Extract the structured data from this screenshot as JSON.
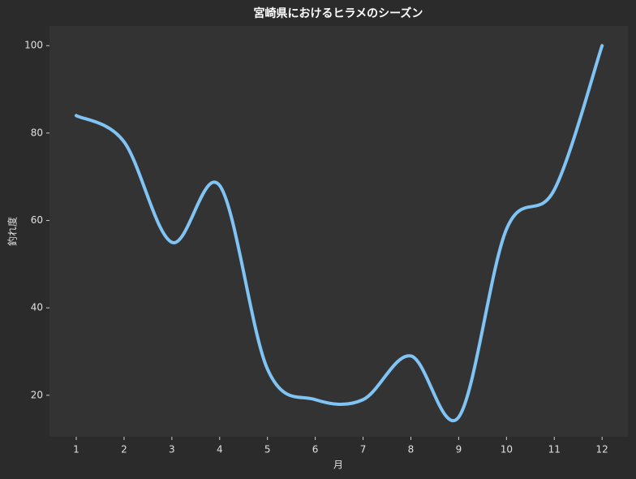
{
  "chart_data": {
    "type": "line",
    "title": "宮崎県におけるヒラメのシーズン",
    "x_label": "月",
    "y_label": "釣れ度",
    "x": [
      1,
      2,
      3,
      4,
      5,
      6,
      7,
      8,
      9,
      10,
      11,
      12
    ],
    "series": [
      {
        "color": "#7fc4f5",
        "values": [
          84,
          78,
          55,
          68,
          26,
          19,
          19,
          29,
          15,
          58,
          67,
          100
        ]
      }
    ],
    "xlim": [
      0.44,
      12.54
    ],
    "xticks": [
      1,
      2,
      3,
      4,
      5,
      6,
      7,
      8,
      9,
      10,
      11,
      12
    ],
    "ylim": [
      10.5,
      104.5
    ],
    "yticks": [
      20,
      40,
      60,
      80,
      100
    ],
    "smooth": true
  }
}
